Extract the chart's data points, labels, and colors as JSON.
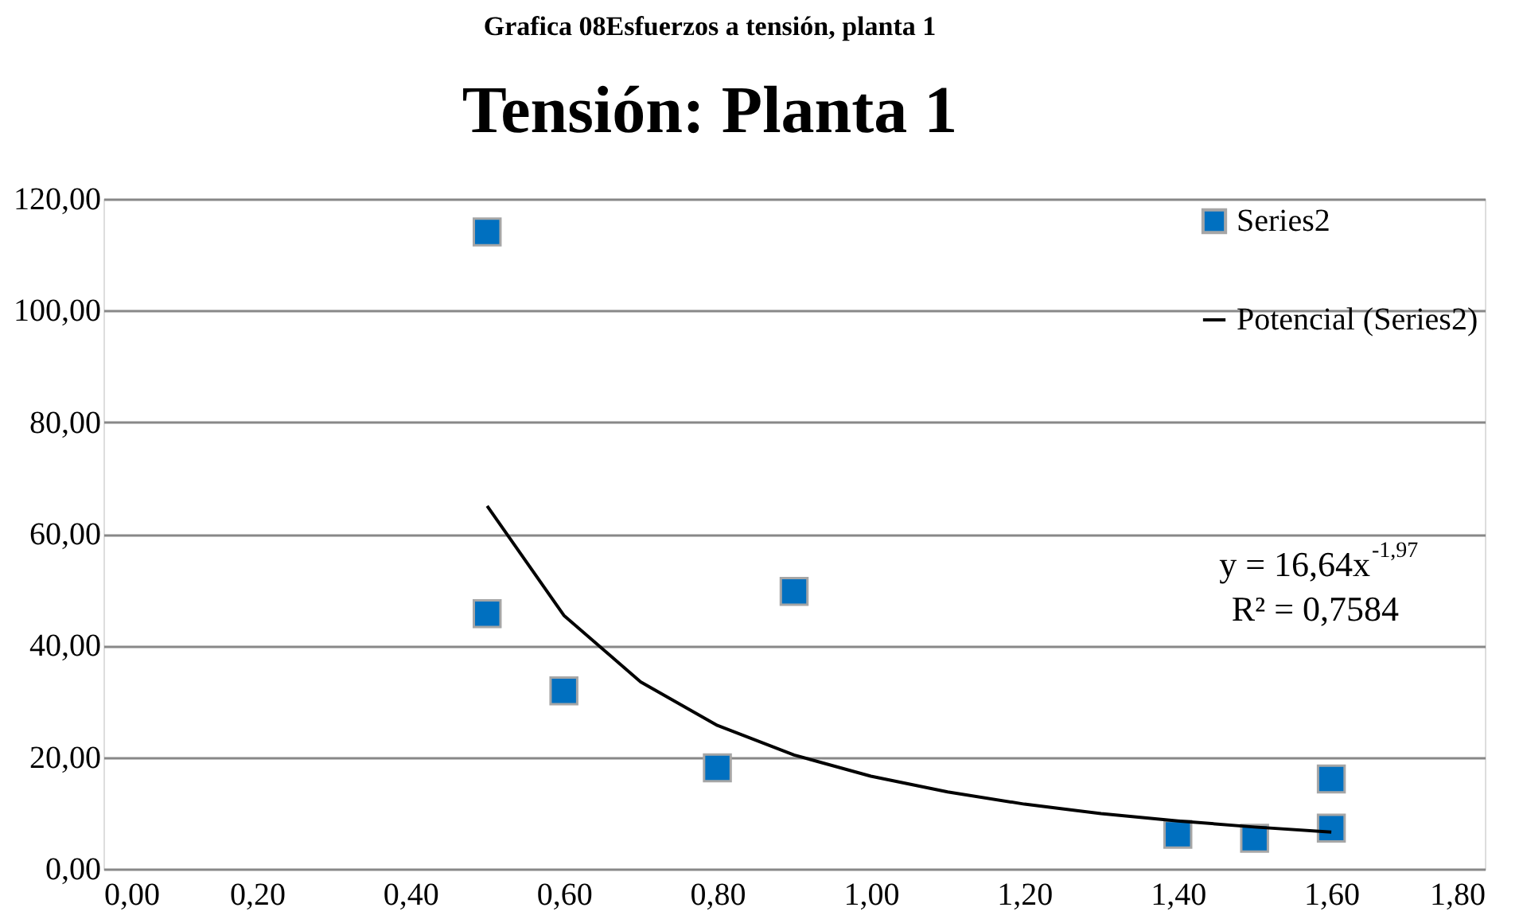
{
  "chart_data": {
    "type": "scatter",
    "title": "Tensión: Planta 1",
    "annotations": [
      "Grafica 08Esfuerzos a tensión, planta 1",
      "y = 16,64x$^{-1,97}$",
      "R² = 0,7584"
    ],
    "series": [
      {
        "name": "Series2",
        "color": "#0070c0",
        "x": [
          0.5,
          0.5,
          0.6,
          0.8,
          0.9,
          1.4,
          1.5,
          1.6,
          1.6
        ],
        "values": [
          114.1,
          45.7,
          31.9,
          18.1,
          49.7,
          6.2,
          5.5,
          7.3,
          16.1
        ]
      },
      {
        "name": "Potencial (Series2)",
        "type": "line",
        "color": "#000000",
        "marker": "none",
        "x": [
          0.5,
          0.6,
          0.7,
          0.8,
          0.9,
          1.0,
          1.1,
          1.2,
          1.3,
          1.4,
          1.5,
          1.6
        ],
        "values": [
          65.0,
          45.4,
          33.5,
          25.7,
          20.4,
          16.6,
          13.8,
          11.6,
          9.9,
          8.6,
          7.5,
          6.6
        ]
      }
    ],
    "marker": "square",
    "line_style": "solid",
    "grid": "y",
    "legend": "top right",
    "xlim": [
      0,
      1.8
    ],
    "xticks": [
      {
        "value": 0,
        "label": "0,00"
      },
      {
        "value": 0.2,
        "label": "0,20"
      },
      {
        "value": 0.4,
        "label": "0,40"
      },
      {
        "value": 0.6,
        "label": "0,60"
      },
      {
        "value": 0.8,
        "label": "0,80"
      },
      {
        "value": 1.0,
        "label": "1,00"
      },
      {
        "value": 1.2,
        "label": "1,20"
      },
      {
        "value": 1.4,
        "label": "1,40"
      },
      {
        "value": 1.6,
        "label": "1,60"
      },
      {
        "value": 1.8,
        "label": "1,80"
      }
    ],
    "ylim": [
      0,
      120
    ],
    "yticks": [
      {
        "value": 0,
        "label": "0,00"
      },
      {
        "value": 20,
        "label": "20,00"
      },
      {
        "value": 40,
        "label": "40,00"
      },
      {
        "value": 60,
        "label": "60,00"
      },
      {
        "value": 80,
        "label": "80,00"
      },
      {
        "value": 100,
        "label": "100,00"
      },
      {
        "value": 120,
        "label": "120,00"
      }
    ]
  }
}
